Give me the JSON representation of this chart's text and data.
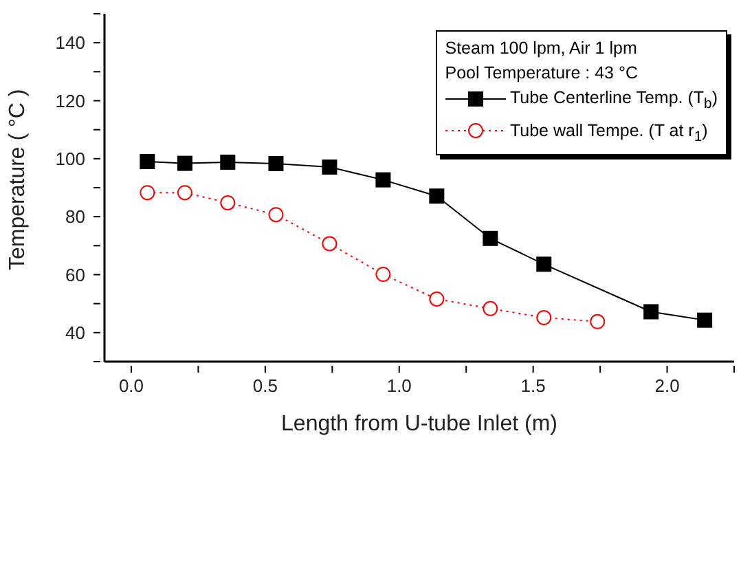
{
  "chart_data": {
    "type": "line",
    "xlabel": "Length from U-tube Inlet (m)",
    "ylabel": "Temperature ( °C )",
    "xlim": [
      -0.1,
      2.25
    ],
    "xticks": [
      {
        "value": 0,
        "label": "0.0"
      },
      {
        "value": 0.25,
        "label": null
      },
      {
        "value": 0.5,
        "label": "0.5"
      },
      {
        "value": 0.75,
        "label": null
      },
      {
        "value": 1,
        "label": "1.0"
      },
      {
        "value": 1.25,
        "label": null
      },
      {
        "value": 1.5,
        "label": "1.5"
      },
      {
        "value": 1.75,
        "label": null
      },
      {
        "value": 2,
        "label": "2.0"
      },
      {
        "value": 2.25,
        "label": null
      }
    ],
    "ylim": [
      30,
      150
    ],
    "yticks": [
      {
        "value": 30,
        "label": null
      },
      40,
      {
        "value": 50,
        "label": null
      },
      60,
      {
        "value": 70,
        "label": null
      },
      80,
      {
        "value": 90,
        "label": null
      },
      100,
      {
        "value": 110,
        "label": null
      },
      120,
      {
        "value": 130,
        "label": null
      },
      140,
      {
        "value": 150,
        "label": null
      }
    ],
    "grid": false,
    "legend": "top right",
    "annotations": [
      "Steam 100 lpm, Air  1 lpm",
      "Pool Temperature : 43 °C"
    ],
    "series": [
      {
        "name": "Tube Centerline Temp. (T$_{b}$)",
        "color": "#000000",
        "marker": "square",
        "line_style": "solid",
        "x": [
          0.06,
          0.2,
          0.36,
          0.54,
          0.74,
          0.94,
          1.14,
          1.34,
          1.54,
          1.94,
          2.14
        ],
        "values": [
          99,
          98.4,
          98.8,
          98.3,
          97.1,
          92.7,
          87.1,
          72.5,
          63.6,
          47.2,
          44.3
        ]
      },
      {
        "name": "Tube wall Tempe. (T at r$_{1}$)",
        "color": "#ff0000",
        "marker": "circle",
        "line_style": "dotted",
        "x": [
          0.06,
          0.2,
          0.36,
          0.54,
          0.74,
          0.94,
          1.14,
          1.34,
          1.54,
          1.74
        ],
        "values": [
          88.3,
          88.3,
          84.8,
          80.7,
          70.7,
          60.1,
          51.6,
          48.3,
          45.2,
          43.8
        ]
      }
    ]
  }
}
